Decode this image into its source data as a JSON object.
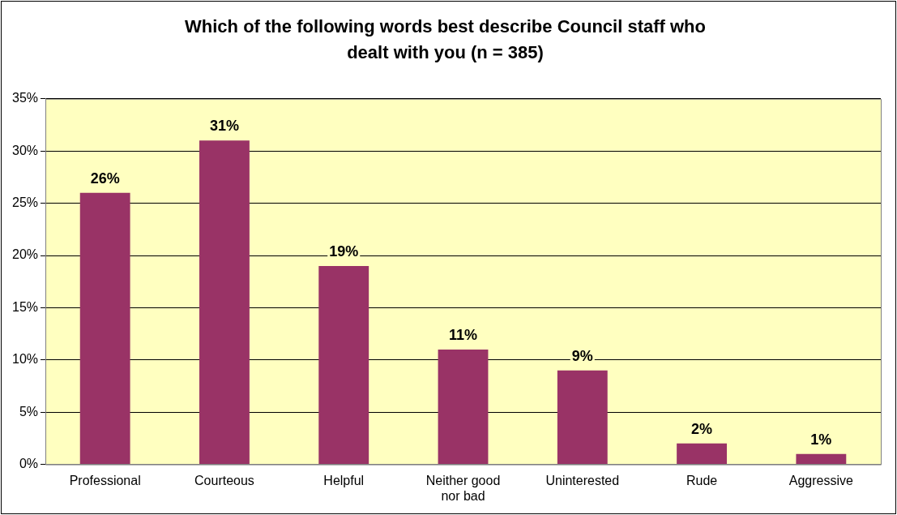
{
  "chart_data": {
    "type": "bar",
    "title": "Which of the following words best describe Council staff who dealt with you (n = 385)",
    "categories": [
      "Professional",
      "Courteous",
      "Helpful",
      "Neither good nor bad",
      "Uninterested",
      "Rude",
      "Aggressive"
    ],
    "values": [
      26,
      31,
      19,
      11,
      9,
      2,
      1
    ],
    "value_labels": [
      "26%",
      "31%",
      "19%",
      "11%",
      "9%",
      "2%",
      "1%"
    ],
    "color": "#993366",
    "ylim": [
      0,
      35
    ],
    "yticks": [
      {
        "value": 0,
        "label": "0%"
      },
      {
        "value": 5,
        "label": "5%"
      },
      {
        "value": 10,
        "label": "10%"
      },
      {
        "value": 15,
        "label": "15%"
      },
      {
        "value": 20,
        "label": "20%"
      },
      {
        "value": 25,
        "label": "25%"
      },
      {
        "value": 30,
        "label": "30%"
      },
      {
        "value": 35,
        "label": "35%"
      }
    ],
    "grid": "y",
    "legend": false
  }
}
